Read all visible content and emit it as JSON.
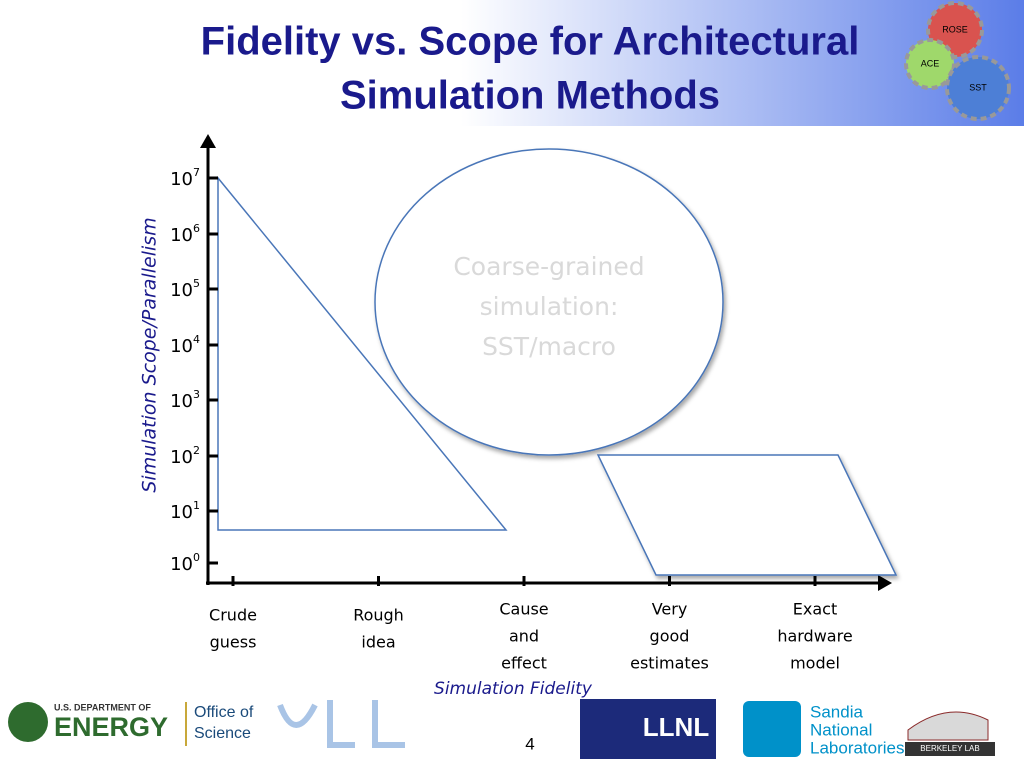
{
  "header": {
    "title_lines": [
      "Fidelity vs. Scope for Architectural",
      "Simulation Methods"
    ],
    "logo_gears": [
      "ROSE",
      "ACE",
      "SST"
    ]
  },
  "diagram": {
    "y_axis_label": "Simulation Scope/Parallelism",
    "y_ticks": [
      {
        "base": "10",
        "exp": "7"
      },
      {
        "base": "10",
        "exp": "6"
      },
      {
        "base": "10",
        "exp": "5"
      },
      {
        "base": "10",
        "exp": "4"
      },
      {
        "base": "10",
        "exp": "3"
      },
      {
        "base": "10",
        "exp": "2"
      },
      {
        "base": "10",
        "exp": "1"
      },
      {
        "base": "10",
        "exp": "0"
      }
    ],
    "x_axis_label": "Simulation Fidelity",
    "x_categories": [
      [
        "Crude",
        "guess"
      ],
      [
        "Rough",
        "idea"
      ],
      [
        "Cause",
        "and",
        "effect"
      ],
      [
        "Very",
        "good",
        "estimates"
      ],
      [
        "Exact",
        "hardware",
        "model"
      ]
    ],
    "ellipse_text": [
      "Coarse-grained",
      "simulation:",
      "SST/macro"
    ]
  },
  "footer": {
    "doe": [
      "U.S. DEPARTMENT OF",
      "ENERGY"
    ],
    "office": [
      "Office of",
      "Science"
    ],
    "page_number": "4",
    "llnl": "LLNL",
    "sandia": [
      "Sandia",
      "National",
      "Laboratories"
    ],
    "berkeley": "BERKELEY LAB"
  }
}
